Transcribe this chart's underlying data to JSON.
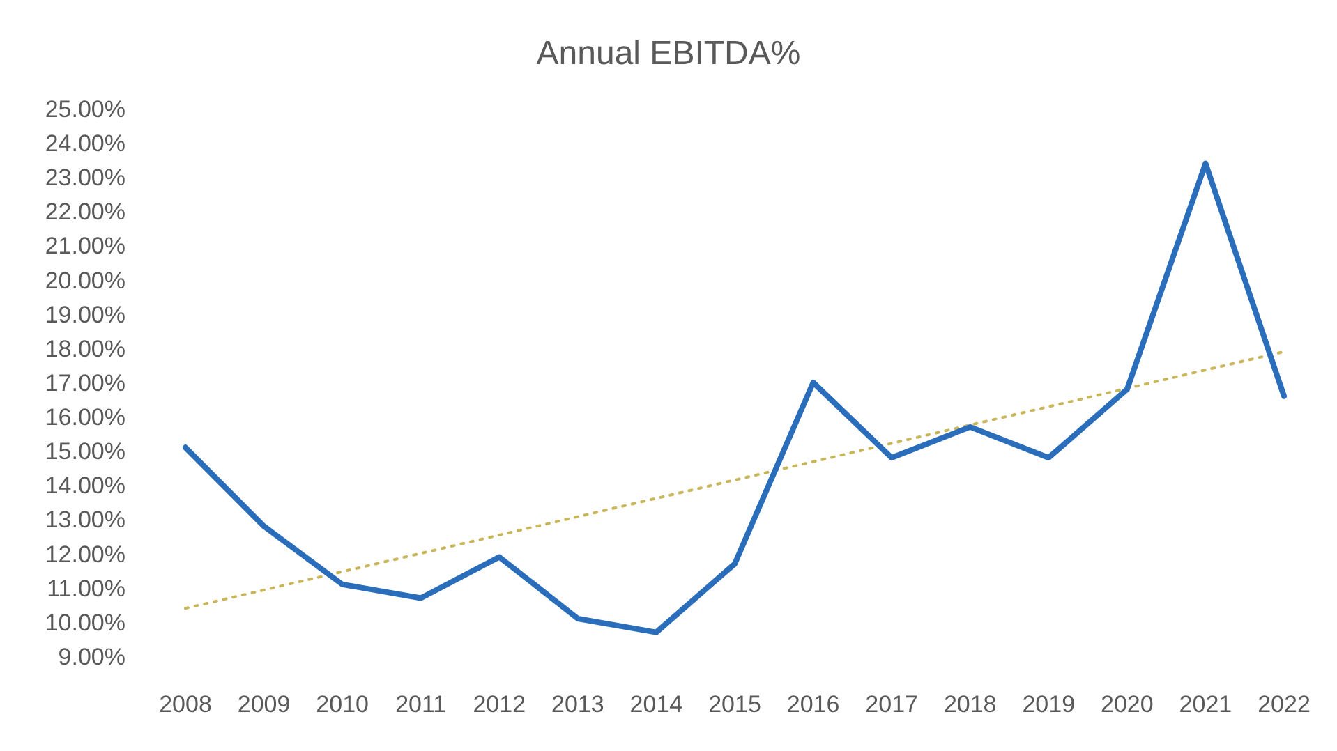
{
  "chart_data": {
    "type": "line",
    "title": "Annual EBITDA%",
    "categories": [
      "2008",
      "2009",
      "2010",
      "2011",
      "2012",
      "2013",
      "2014",
      "2015",
      "2016",
      "2017",
      "2018",
      "2019",
      "2020",
      "2021",
      "2022"
    ],
    "series": [
      {
        "color": "#2a6ebb",
        "values": [
          15.1,
          12.8,
          11.1,
          10.7,
          11.9,
          10.1,
          9.7,
          11.7,
          17.0,
          14.8,
          15.7,
          14.8,
          16.8,
          23.4,
          16.6
        ]
      },
      {
        "type": "line",
        "color": "#c9b65a",
        "line_style": "dotted",
        "values": [
          10.4,
          null,
          null,
          null,
          null,
          null,
          null,
          null,
          null,
          null,
          null,
          null,
          null,
          null,
          17.9
        ]
      }
    ],
    "ylim": [
      9,
      25
    ],
    "yticks": [
      {
        "value": 9,
        "label": "9.00%"
      },
      {
        "value": 10,
        "label": "10.00%"
      },
      {
        "value": 11,
        "label": "11.00%"
      },
      {
        "value": 12,
        "label": "12.00%"
      },
      {
        "value": 13,
        "label": "13.00%"
      },
      {
        "value": 14,
        "label": "14.00%"
      },
      {
        "value": 15,
        "label": "15.00%"
      },
      {
        "value": 16,
        "label": "16.00%"
      },
      {
        "value": 17,
        "label": "17.00%"
      },
      {
        "value": 18,
        "label": "18.00%"
      },
      {
        "value": 19,
        "label": "19.00%"
      },
      {
        "value": 20,
        "label": "20.00%"
      },
      {
        "value": 21,
        "label": "21.00%"
      },
      {
        "value": 22,
        "label": "22.00%"
      },
      {
        "value": 23,
        "label": "23.00%"
      },
      {
        "value": 24,
        "label": "24.00%"
      },
      {
        "value": 25,
        "label": "25.00%"
      }
    ],
    "marker": "none"
  }
}
